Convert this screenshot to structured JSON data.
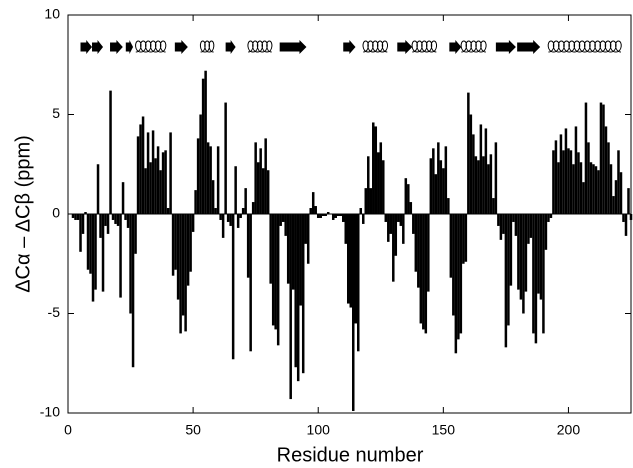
{
  "chart_data": {
    "type": "bar",
    "xlabel": "Residue number",
    "ylabel": "ΔCα – ΔCβ (ppm)",
    "color": "#000000",
    "xlim": [
      0,
      225
    ],
    "xticks": [
      0,
      50,
      100,
      150,
      200
    ],
    "ylim": [
      -10,
      10
    ],
    "yticks": [
      -10,
      -5,
      0,
      5,
      10
    ],
    "x": [
      1,
      2,
      3,
      4,
      5,
      6,
      7,
      8,
      9,
      10,
      11,
      12,
      13,
      14,
      15,
      16,
      17,
      18,
      19,
      20,
      21,
      22,
      23,
      24,
      25,
      26,
      27,
      28,
      29,
      30,
      31,
      32,
      33,
      34,
      35,
      36,
      37,
      38,
      39,
      40,
      41,
      42,
      43,
      44,
      45,
      46,
      47,
      48,
      49,
      50,
      51,
      52,
      53,
      54,
      55,
      56,
      57,
      58,
      59,
      60,
      61,
      62,
      63,
      64,
      65,
      66,
      67,
      68,
      69,
      70,
      71,
      72,
      73,
      74,
      75,
      76,
      77,
      78,
      79,
      80,
      81,
      82,
      83,
      84,
      85,
      86,
      87,
      88,
      89,
      90,
      91,
      92,
      93,
      94,
      95,
      96,
      97,
      98,
      99,
      100,
      101,
      102,
      103,
      104,
      105,
      106,
      107,
      108,
      109,
      110,
      111,
      112,
      113,
      114,
      115,
      116,
      117,
      118,
      119,
      120,
      121,
      122,
      123,
      124,
      125,
      126,
      127,
      128,
      129,
      130,
      131,
      132,
      133,
      134,
      135,
      136,
      137,
      138,
      139,
      140,
      141,
      142,
      143,
      144,
      145,
      146,
      147,
      148,
      149,
      150,
      151,
      152,
      153,
      154,
      155,
      156,
      157,
      158,
      159,
      160,
      161,
      162,
      163,
      164,
      165,
      166,
      167,
      168,
      169,
      170,
      171,
      172,
      173,
      174,
      175,
      176,
      177,
      178,
      179,
      180,
      181,
      182,
      183,
      184,
      185,
      186,
      187,
      188,
      189,
      190,
      191,
      192,
      193,
      194,
      195,
      196,
      197,
      198,
      199,
      200,
      201,
      202,
      203,
      204,
      205,
      206,
      207,
      208,
      209,
      210,
      211,
      212,
      213,
      214,
      215,
      216,
      217,
      218,
      219,
      220,
      221,
      222,
      223,
      224,
      225
    ],
    "values": [
      0,
      -0.2,
      -0.3,
      -0.3,
      -1.9,
      -1,
      0.1,
      -2.8,
      -3,
      -4.4,
      -3.8,
      2.5,
      -1.2,
      -3.9,
      -0.6,
      -1,
      6.2,
      -0.3,
      -0.5,
      -0.6,
      -4.2,
      1.6,
      -0.3,
      -0.7,
      -5,
      -7.7,
      -2,
      3.9,
      4.5,
      4.9,
      2.3,
      4.1,
      2.6,
      4.2,
      2.8,
      3.4,
      2.2,
      3.1,
      3.2,
      0.3,
      4.1,
      -3.1,
      -2.8,
      -4.3,
      -6,
      -5.1,
      -5.9,
      -3.6,
      -2.9,
      -0.9,
      1.2,
      3.8,
      5,
      6.8,
      7.2,
      3.6,
      3.4,
      1.7,
      0.3,
      3.4,
      -0.3,
      -1.2,
      5.6,
      -0.4,
      -0.6,
      -7.3,
      2.4,
      -0.7,
      -0.2,
      0.3,
      1.3,
      -3.2,
      -6.9,
      0.6,
      3.6,
      2.6,
      3.3,
      2.3,
      3.8,
      2.2,
      -3.5,
      -5.6,
      -5.8,
      -6.6,
      -0.6,
      -0.4,
      -1.1,
      -3.5,
      -9.3,
      -3.8,
      -7.7,
      -8.4,
      -4.6,
      -8,
      -1.5,
      -2.5,
      0.3,
      1.1,
      0.4,
      -0.2,
      -0.2,
      -0.1,
      -0.1,
      0.1,
      0,
      -0.3,
      -0.2,
      -0.1,
      -0.1,
      -0.4,
      -1.5,
      -4.5,
      -4.7,
      -9.9,
      -5.5,
      -6.9,
      0.3,
      -0.5,
      1.3,
      2.9,
      1.3,
      4.6,
      4.4,
      3.1,
      3.6,
      2.7,
      -0.4,
      -1.4,
      -1,
      -3.4,
      -2.1,
      -0.4,
      -0.6,
      -1.5,
      1.8,
      1.5,
      0.6,
      -1,
      -2.9,
      -3.7,
      -5.5,
      -5.8,
      -6,
      -3.9,
      2.8,
      3.3,
      2,
      3.6,
      2.7,
      2.3,
      3.4,
      0.8,
      -3.2,
      -5.1,
      -7,
      -6.3,
      -6,
      -2.5,
      -2.4,
      6.1,
      5,
      4,
      2.9,
      2.7,
      4.5,
      2.9,
      4.3,
      2.5,
      3,
      0.8,
      3.6,
      -0.6,
      -1.3,
      -1,
      -6.7,
      -5.6,
      -3.6,
      -0.4,
      -1.1,
      -3.8,
      -4.3,
      -5,
      -3.9,
      -1.5,
      -1.2,
      -6,
      -6.5,
      -4,
      -4.3,
      -6,
      -1.8,
      -0.4,
      -0.2,
      3.2,
      3.7,
      2.6,
      4,
      3.2,
      4.3,
      3.3,
      3.2,
      2.5,
      4.4,
      3.1,
      2.6,
      1.6,
      5.6,
      3.6,
      2.6,
      2.5,
      2.4,
      2.2,
      5.6,
      5.5,
      4.4,
      3.6,
      2.5,
      0.9,
      1.7,
      3.2,
      2.1,
      -0.4,
      -1.1,
      1.3,
      -0.3
    ],
    "secondary_structure": [
      {
        "kind": "strand",
        "start": 5,
        "end": 9.6
      },
      {
        "kind": "strand",
        "start": 9.6,
        "end": 14
      },
      {
        "kind": "strand",
        "start": 16.8,
        "end": 21.9
      },
      {
        "kind": "strand",
        "start": 23.1,
        "end": 26
      },
      {
        "kind": "helix",
        "start": 27.1,
        "end": 39
      },
      {
        "kind": "strand",
        "start": 42.7,
        "end": 47.9
      },
      {
        "kind": "helix",
        "start": 53,
        "end": 58.2
      },
      {
        "kind": "strand",
        "start": 63,
        "end": 67
      },
      {
        "kind": "helix",
        "start": 72,
        "end": 81.4
      },
      {
        "kind": "strand",
        "start": 84.6,
        "end": 95.3
      },
      {
        "kind": "strand",
        "start": 110,
        "end": 114.9
      },
      {
        "kind": "helix",
        "start": 118,
        "end": 127.6
      },
      {
        "kind": "strand",
        "start": 131.6,
        "end": 137.6
      },
      {
        "kind": "helix",
        "start": 137.6,
        "end": 147.2
      },
      {
        "kind": "strand",
        "start": 152.4,
        "end": 157.2
      },
      {
        "kind": "helix",
        "start": 157.2,
        "end": 167
      },
      {
        "kind": "strand",
        "start": 171,
        "end": 179
      },
      {
        "kind": "strand",
        "start": 179.5,
        "end": 188.7
      },
      {
        "kind": "helix",
        "start": 192,
        "end": 221
      }
    ]
  }
}
